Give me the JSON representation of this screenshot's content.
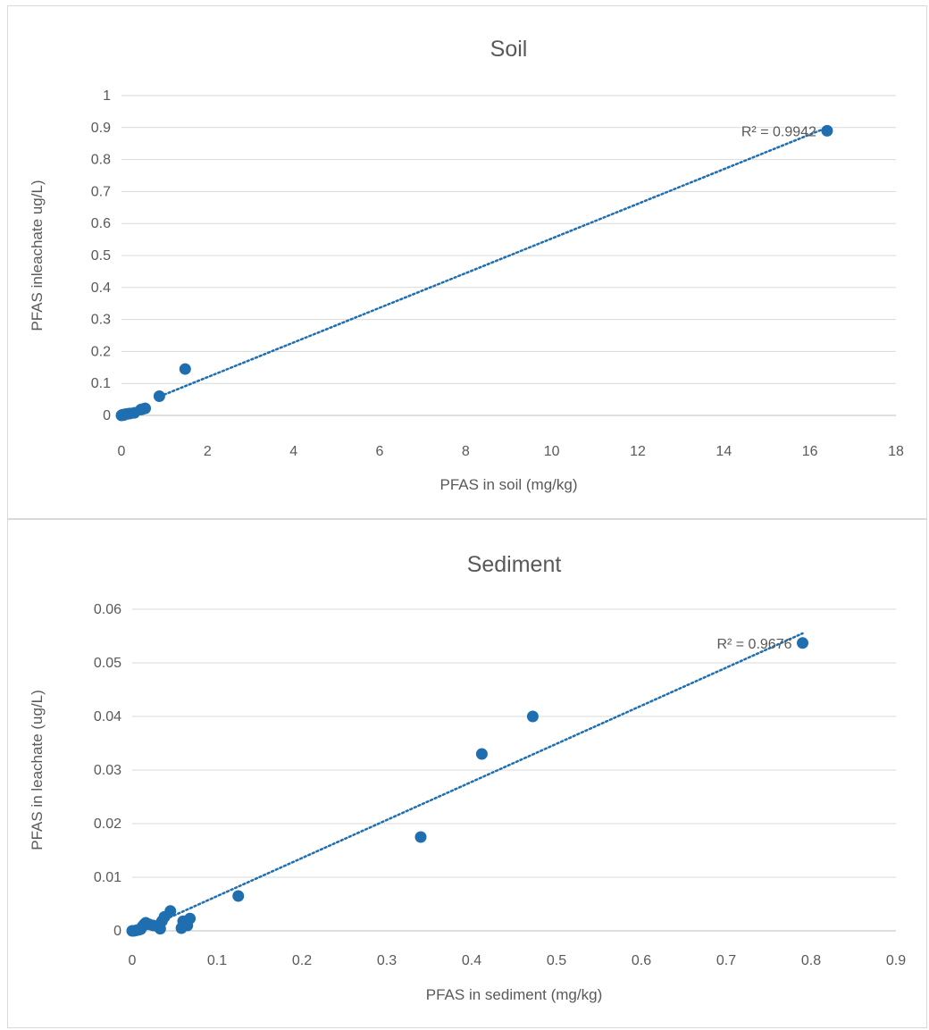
{
  "chart_data": [
    {
      "type": "scatter",
      "title": "Soil",
      "xlabel": "PFAS in soil (mg/kg)",
      "ylabel": "PFAS inleachate ug/L)",
      "xlim": [
        0,
        18
      ],
      "ylim": [
        0,
        1
      ],
      "x_ticks": [
        "0",
        "2",
        "4",
        "6",
        "8",
        "10",
        "12",
        "14",
        "16",
        "18"
      ],
      "y_ticks": [
        "0",
        "0.1",
        "0.2",
        "0.3",
        "0.4",
        "0.5",
        "0.6",
        "0.7",
        "0.8",
        "0.9",
        "1"
      ],
      "grid": true,
      "marker_color": "#1f6fb0",
      "trendline": {
        "style": "dotted",
        "color": "#1f6fb0",
        "r2_label": "R² = 0.9942",
        "x_start": 0.9,
        "x_end": 16.4,
        "y_start": 0.06,
        "y_end": 0.9
      },
      "series": [
        {
          "points": [
            [
              0.0,
              0.0
            ],
            [
              0.01,
              0.001
            ],
            [
              0.03,
              0.002
            ],
            [
              0.05,
              0.001
            ],
            [
              0.08,
              0.003
            ],
            [
              0.1,
              0.004
            ],
            [
              0.15,
              0.005
            ],
            [
              0.2,
              0.006
            ],
            [
              0.3,
              0.008
            ],
            [
              0.45,
              0.018
            ],
            [
              0.5,
              0.02
            ],
            [
              0.55,
              0.022
            ],
            [
              0.88,
              0.06
            ],
            [
              1.48,
              0.145
            ],
            [
              16.4,
              0.89
            ]
          ]
        }
      ]
    },
    {
      "type": "scatter",
      "title": "Sediment",
      "xlabel": "PFAS in sediment (mg/kg)",
      "ylabel": "PFAS in leachate (ug/L)",
      "xlim": [
        0,
        0.9
      ],
      "ylim": [
        0,
        0.06
      ],
      "x_ticks": [
        "0",
        "0.1",
        "0.2",
        "0.3",
        "0.4",
        "0.5",
        "0.6",
        "0.7",
        "0.8",
        "0.9"
      ],
      "y_ticks": [
        "0",
        "0.01",
        "0.02",
        "0.03",
        "0.04",
        "0.05",
        "0.06"
      ],
      "grid": true,
      "marker_color": "#1f6fb0",
      "trendline": {
        "style": "dotted",
        "color": "#1f6fb0",
        "r2_label": "R² = 0.9676",
        "x_start": 0.03,
        "x_end": 0.79,
        "y_start": 0.0015,
        "y_end": 0.0555
      },
      "series": [
        {
          "points": [
            [
              0.0,
              0.0
            ],
            [
              0.002,
              0.0
            ],
            [
              0.005,
              0.0001
            ],
            [
              0.008,
              0.0002
            ],
            [
              0.01,
              0.0003
            ],
            [
              0.012,
              0.0008
            ],
            [
              0.014,
              0.0012
            ],
            [
              0.016,
              0.0015
            ],
            [
              0.02,
              0.0012
            ],
            [
              0.025,
              0.001
            ],
            [
              0.03,
              0.0008
            ],
            [
              0.033,
              0.0004
            ],
            [
              0.035,
              0.0018
            ],
            [
              0.038,
              0.0026
            ],
            [
              0.045,
              0.0037
            ],
            [
              0.058,
              0.0005
            ],
            [
              0.06,
              0.0018
            ],
            [
              0.065,
              0.001
            ],
            [
              0.068,
              0.0023
            ],
            [
              0.125,
              0.0065
            ],
            [
              0.34,
              0.0175
            ],
            [
              0.412,
              0.033
            ],
            [
              0.472,
              0.04
            ],
            [
              0.79,
              0.0537
            ]
          ]
        }
      ]
    }
  ]
}
